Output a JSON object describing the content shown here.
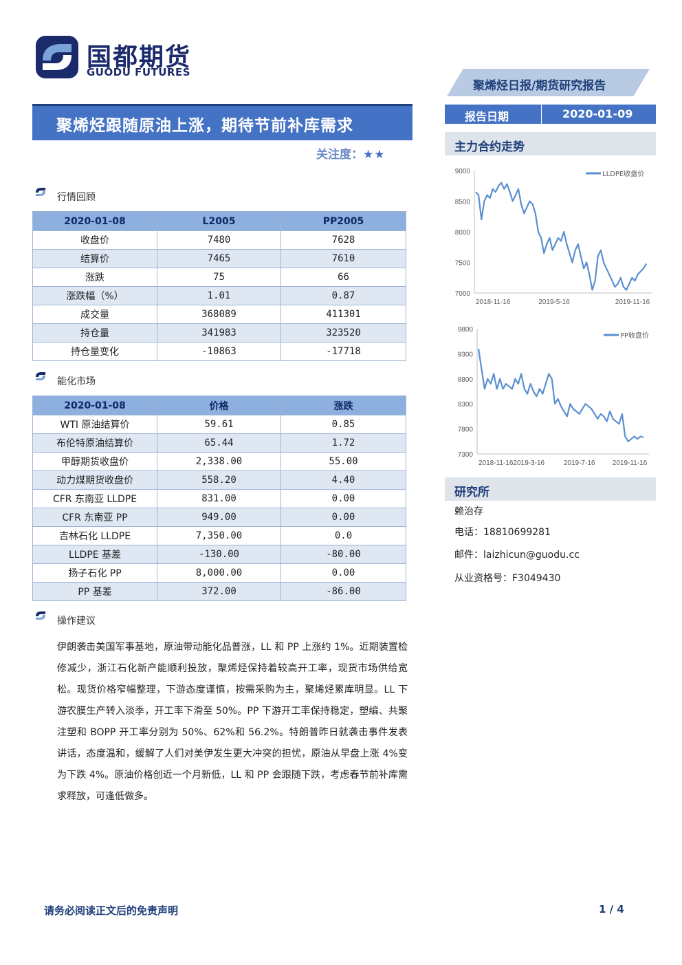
{
  "logo": {
    "cn": "国都期货",
    "en": "GUODU FUTURES"
  },
  "banner": "聚烯烃日报/期货研究报告",
  "title": "聚烯烃跟随原油上涨，期待节前补库需求",
  "attention": {
    "label": "关注度：",
    "stars": "★★"
  },
  "report_date": {
    "label": "报告日期",
    "value": "2020-01-09"
  },
  "sections": {
    "market_review": "行情回顾",
    "energy_market": "能化市场",
    "suggestion": "操作建议",
    "main_contract": "主力合约走势",
    "institute": "研究所"
  },
  "table1": {
    "headers": [
      "2020-01-08",
      "L2005",
      "PP2005"
    ],
    "rows": [
      [
        "收盘价",
        "7480",
        "7628"
      ],
      [
        "结算价",
        "7465",
        "7610"
      ],
      [
        "涨跌",
        "75",
        "66"
      ],
      [
        "涨跌幅（%）",
        "1.01",
        "0.87"
      ],
      [
        "成交量",
        "368089",
        "411301"
      ],
      [
        "持仓量",
        "341983",
        "323520"
      ],
      [
        "持仓量变化",
        "-10863",
        "-17718"
      ]
    ]
  },
  "table2": {
    "headers": [
      "2020-01-08",
      "价格",
      "涨跌"
    ],
    "rows": [
      [
        "WTI 原油结算价",
        "59.61",
        "0.85"
      ],
      [
        "布伦特原油结算价",
        "65.44",
        "1.72"
      ],
      [
        "甲醇期货收盘价",
        "2,338.00",
        "55.00"
      ],
      [
        "动力煤期货收盘价",
        "558.20",
        "4.40"
      ],
      [
        "CFR 东南亚 LLDPE",
        "831.00",
        "0.00"
      ],
      [
        "CFR 东南亚 PP",
        "949.00",
        "0.00"
      ],
      [
        "吉林石化 LLDPE",
        "7,350.00",
        "0.0"
      ],
      [
        "LLDPE 基差",
        "-130.00",
        "-80.00"
      ],
      [
        "扬子石化 PP",
        "8,000.00",
        "0.00"
      ],
      [
        "PP 基差",
        "372.00",
        "-86.00"
      ]
    ]
  },
  "suggestion_text": "伊朗袭击美国军事基地，原油带动能化品普涨，LL 和 PP 上涨约 1%。近期装置检修减少，浙江石化新产能顺利投放，聚烯烃保持着较高开工率，现货市场供给宽松。现货价格窄幅整理，下游态度谨慎，按需采购为主，聚烯烃累库明显。LL 下游农膜生产转入淡季，开工率下滑至 50%。PP 下游开工率保持稳定，塑编、共聚注塑和 BOPP 开工率分别为 50%、62%和 56.2%。特朗普昨日就袭击事件发表讲话，态度温和，缓解了人们对美伊发生更大冲突的担忧，原油从早盘上涨 4%变为下跌 4%。原油价格创近一个月新低，LL 和 PP 会跟随下跌，考虑春节前补库需求释放，可逢低做多。",
  "analyst": {
    "name": "赖治存",
    "phone": "电话：18810699281",
    "email": "邮件：laizhicun@guodu.cc",
    "license": "从业资格号：F3049430"
  },
  "footer": {
    "disclaimer": "请务必阅读正文后的免责声明",
    "page": "1 / 4"
  },
  "colors": {
    "brand": "#1b2a6b",
    "accent": "#4472c4",
    "series": "#5b8fd0"
  },
  "chart_data": [
    {
      "type": "line",
      "series": [
        {
          "name": "LLDPE收盘价"
        }
      ],
      "x_ticks": [
        "2018-11-16",
        "2019-5-16",
        "2019-11-16"
      ],
      "y_ticks": [
        "7000",
        "7500",
        "8000",
        "8500",
        "9000"
      ],
      "ylim": [
        7000,
        9000
      ],
      "legend": "top-right",
      "values": [
        8650,
        8600,
        8200,
        8500,
        8600,
        8550,
        8700,
        8650,
        8750,
        8800,
        8700,
        8780,
        8650,
        8500,
        8600,
        8700,
        8450,
        8300,
        8400,
        8500,
        8450,
        8300,
        8000,
        7900,
        7650,
        7800,
        7900,
        7700,
        7800,
        7900,
        7850,
        8000,
        7800,
        7650,
        7500,
        7700,
        7800,
        7600,
        7400,
        7500,
        7300,
        7050,
        7200,
        7600,
        7700,
        7500,
        7400,
        7300,
        7200,
        7100,
        7150,
        7250,
        7100,
        7050,
        7150,
        7250,
        7200,
        7300,
        7350,
        7400,
        7480
      ]
    },
    {
      "type": "line",
      "series": [
        {
          "name": "PP收盘价"
        }
      ],
      "x_ticks": [
        "2018-11-16",
        "2019-3-16",
        "2019-7-16",
        "2019-11-16"
      ],
      "y_ticks": [
        "7300",
        "7800",
        "8300",
        "8800",
        "9300",
        "9800"
      ],
      "ylim": [
        7300,
        9800
      ],
      "legend": "top-right",
      "values": [
        9400,
        9000,
        8600,
        8800,
        8700,
        8900,
        8600,
        8800,
        8600,
        8700,
        8650,
        8600,
        8800,
        8700,
        8900,
        8600,
        8500,
        8700,
        8550,
        8450,
        8600,
        8500,
        8700,
        8900,
        8800,
        8300,
        8400,
        8250,
        8150,
        8050,
        8300,
        8200,
        8150,
        8100,
        8200,
        8300,
        8250,
        8200,
        8100,
        8000,
        8100,
        8050,
        7950,
        8150,
        8000,
        7950,
        7900,
        8100,
        7650,
        7550,
        7600,
        7650,
        7600,
        7650,
        7628
      ]
    }
  ]
}
